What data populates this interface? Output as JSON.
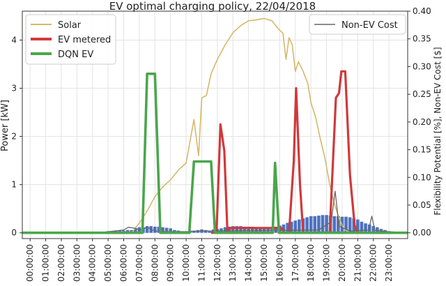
{
  "chart_data": {
    "type": "line",
    "title": "EV optimal charging policy, 22/04/2018",
    "ylabel_left": "Power [kW]",
    "ylabel_right": "Flexibility Potential [%], Non-EV Cost [$]",
    "ylim_left": [
      -0.12,
      4.6
    ],
    "ylim_right": [
      0.0,
      0.4
    ],
    "xlim_hours": [
      -0.5,
      24.2
    ],
    "x_ticks": [
      "00:00:00",
      "01:00:00",
      "02:00:00",
      "03:00:00",
      "04:00:00",
      "05:00:00",
      "06:00:00",
      "07:00:00",
      "08:00:00",
      "09:00:00",
      "10:00:00",
      "11:00:00",
      "12:00:00",
      "13:00:00",
      "14:00:00",
      "15:00:00",
      "16:00:00",
      "17:00:00",
      "18:00:00",
      "19:00:00",
      "20:00:00",
      "21:00:00",
      "22:00:00",
      "23:00:00"
    ],
    "y_ticks_left": [
      "0",
      "1",
      "2",
      "3",
      "4"
    ],
    "y_ticks_right": [
      "0.00",
      "0.05",
      "0.10",
      "0.15",
      "0.20",
      "0.25",
      "0.30",
      "0.35",
      "0.40"
    ],
    "grid": true,
    "legend_left": {
      "placement": "top-left",
      "entries": [
        "Solar",
        "EV metered",
        "DQN EV"
      ]
    },
    "legend_right": {
      "placement": "top-right",
      "entries": [
        "Non-EV Cost"
      ]
    },
    "colors": {
      "solar": "#d4b96a",
      "ev_metered": "#d0393b",
      "dqn_ev": "#4aa64c",
      "non_ev_cost": "#666666",
      "bars": "#4f72c0"
    },
    "series": [
      {
        "name": "Solar",
        "axis": "left",
        "points": [
          [
            6.5,
            0
          ],
          [
            7.0,
            0.2
          ],
          [
            7.5,
            0.45
          ],
          [
            8.0,
            0.75
          ],
          [
            8.5,
            0.95
          ],
          [
            9.0,
            1.1
          ],
          [
            9.5,
            1.3
          ],
          [
            10.0,
            1.45
          ],
          [
            10.5,
            2.35
          ],
          [
            10.8,
            1.6
          ],
          [
            11.0,
            2.8
          ],
          [
            11.3,
            2.85
          ],
          [
            11.6,
            3.3
          ],
          [
            12.0,
            3.6
          ],
          [
            12.5,
            3.9
          ],
          [
            13.0,
            4.15
          ],
          [
            13.5,
            4.3
          ],
          [
            14.0,
            4.4
          ],
          [
            14.5,
            4.42
          ],
          [
            15.0,
            4.45
          ],
          [
            15.5,
            4.4
          ],
          [
            16.0,
            4.2
          ],
          [
            16.2,
            4.15
          ],
          [
            16.4,
            3.6
          ],
          [
            16.6,
            4.05
          ],
          [
            16.8,
            3.9
          ],
          [
            17.0,
            3.35
          ],
          [
            17.2,
            3.55
          ],
          [
            17.5,
            3.35
          ],
          [
            17.8,
            3.1
          ],
          [
            18.0,
            2.7
          ],
          [
            18.3,
            2.4
          ],
          [
            18.6,
            1.95
          ],
          [
            18.9,
            1.55
          ],
          [
            19.2,
            1.0
          ],
          [
            19.5,
            0.6
          ],
          [
            19.8,
            0.3
          ],
          [
            20.1,
            0.1
          ],
          [
            20.4,
            0.0
          ]
        ]
      },
      {
        "name": "EV metered",
        "axis": "left",
        "points": [
          [
            11.6,
            0
          ],
          [
            11.95,
            0
          ],
          [
            12.2,
            2.25
          ],
          [
            12.45,
            1.7
          ],
          [
            12.65,
            0
          ],
          [
            12.85,
            0.1
          ],
          [
            16.1,
            0.1
          ],
          [
            16.3,
            0
          ],
          [
            16.6,
            0
          ],
          [
            16.9,
            1.5
          ],
          [
            17.05,
            3.0
          ],
          [
            17.3,
            1.0
          ],
          [
            17.5,
            0
          ],
          [
            19.2,
            0
          ],
          [
            19.6,
            2.8
          ],
          [
            19.8,
            2.9
          ],
          [
            19.95,
            3.35
          ],
          [
            20.2,
            3.35
          ],
          [
            20.5,
            1.2
          ],
          [
            20.8,
            0.15
          ],
          [
            21.0,
            0
          ]
        ]
      },
      {
        "name": "DQN EV",
        "axis": "left",
        "points": [
          [
            -0.5,
            0
          ],
          [
            7.2,
            0
          ],
          [
            7.5,
            3.3
          ],
          [
            8.0,
            3.3
          ],
          [
            8.35,
            0
          ],
          [
            10.2,
            0
          ],
          [
            10.5,
            1.48
          ],
          [
            11.6,
            1.48
          ],
          [
            11.85,
            0
          ],
          [
            15.55,
            0
          ],
          [
            15.7,
            1.45
          ],
          [
            15.95,
            0
          ],
          [
            24.2,
            0
          ]
        ]
      },
      {
        "name": "Non-EV Cost",
        "axis": "right",
        "points": [
          [
            -0.5,
            0
          ],
          [
            4.5,
            0
          ],
          [
            5.0,
            0.002
          ],
          [
            6.0,
            0.005
          ],
          [
            6.3,
            0.01
          ],
          [
            6.8,
            0.008
          ],
          [
            7.0,
            0.004
          ],
          [
            7.5,
            0.01
          ],
          [
            8.0,
            0.003
          ],
          [
            9.0,
            0.002
          ],
          [
            10.0,
            0.002
          ],
          [
            11.0,
            0.003
          ],
          [
            15.0,
            0.004
          ],
          [
            18.5,
            0.005
          ],
          [
            19.3,
            0.02
          ],
          [
            19.55,
            0.075
          ],
          [
            19.8,
            0.012
          ],
          [
            20.5,
            0.003
          ],
          [
            21.7,
            0.005
          ],
          [
            21.9,
            0.03
          ],
          [
            22.1,
            0.004
          ],
          [
            23.0,
            0.002
          ],
          [
            24.2,
            0
          ]
        ]
      }
    ],
    "flexibility_bars": {
      "axis": "right",
      "width_hours": 0.25,
      "x": [
        4.5,
        4.75,
        5.0,
        5.25,
        5.5,
        5.75,
        6.0,
        6.25,
        6.5,
        6.75,
        7.0,
        7.25,
        7.5,
        7.75,
        8.0,
        8.25,
        8.5,
        8.75,
        9.0,
        9.25,
        9.5,
        9.75,
        10.0,
        10.25,
        10.5,
        10.75,
        11.0,
        11.25,
        11.5,
        11.75,
        12.0,
        12.25,
        12.5,
        12.75,
        13.0,
        13.25,
        13.5,
        13.75,
        14.0,
        14.25,
        14.5,
        14.75,
        15.0,
        15.25,
        15.5,
        15.75,
        16.0,
        16.25,
        16.5,
        16.75,
        17.0,
        17.25,
        17.5,
        17.75,
        18.0,
        18.25,
        18.5,
        18.75,
        19.0,
        19.25,
        19.5,
        19.75,
        20.0,
        20.25,
        20.5,
        20.75,
        21.0,
        21.25,
        21.5,
        21.75,
        22.0,
        22.25,
        22.5,
        22.75,
        23.0
      ],
      "values": [
        0.002,
        0.002,
        0.003,
        0.003,
        0.004,
        0.004,
        0.004,
        0.005,
        0.005,
        0.008,
        0.01,
        0.01,
        0.012,
        0.012,
        0.011,
        0.011,
        0.01,
        0.009,
        0.008,
        0.005,
        0.004,
        0.003,
        0.003,
        0.004,
        0.004,
        0.005,
        0.006,
        0.005,
        0.004,
        0.006,
        0.007,
        0.008,
        0.01,
        0.011,
        0.012,
        0.012,
        0.012,
        0.011,
        0.011,
        0.011,
        0.01,
        0.01,
        0.01,
        0.01,
        0.01,
        0.011,
        0.013,
        0.015,
        0.018,
        0.02,
        0.022,
        0.024,
        0.026,
        0.028,
        0.03,
        0.03,
        0.031,
        0.032,
        0.032,
        0.031,
        0.03,
        0.03,
        0.029,
        0.029,
        0.028,
        0.026,
        0.024,
        0.02,
        0.017,
        0.015,
        0.012,
        0.01,
        0.007,
        0.005,
        0.003
      ]
    }
  }
}
